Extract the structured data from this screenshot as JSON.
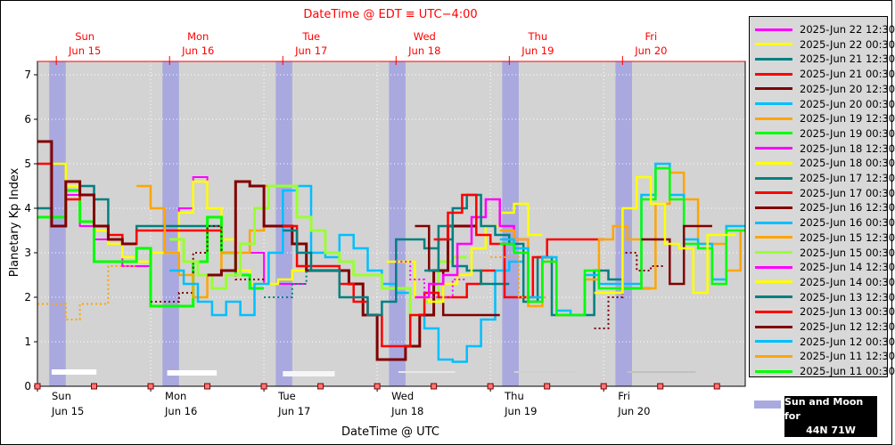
{
  "chart_data": {
    "type": "line",
    "title": "DateTime @ EDT ≡ UTC−4:00",
    "xlabel": "DateTime @ UTC",
    "ylabel": "Planetary Kp Index",
    "ylim": [
      0,
      7.3
    ],
    "yticks": [
      "0",
      "1",
      "2",
      "3",
      "4",
      "5",
      "6",
      "7"
    ],
    "x_range_hours": [
      0,
      150
    ],
    "top_axis_ticks": [
      {
        "day": "Sun",
        "date": "Jun 15",
        "hour": 4
      },
      {
        "day": "Mon",
        "date": "Jun 16",
        "hour": 28
      },
      {
        "day": "Tue",
        "date": "Jun 17",
        "hour": 52
      },
      {
        "day": "Wed",
        "date": "Jun 18",
        "hour": 76
      },
      {
        "day": "Thu",
        "date": "Jun 19",
        "hour": 100
      },
      {
        "day": "Fri",
        "date": "Jun 20",
        "hour": 124
      }
    ],
    "bottom_axis_ticks": [
      {
        "day": "Sun",
        "date": "Jun 15",
        "hour": 0
      },
      {
        "day": "Mon",
        "date": "Jun 16",
        "hour": 24
      },
      {
        "day": "Tue",
        "date": "Jun 17",
        "hour": 48
      },
      {
        "day": "Wed",
        "date": "Jun 18",
        "hour": 72
      },
      {
        "day": "Thu",
        "date": "Jun 19",
        "hour": 96
      },
      {
        "day": "Fri",
        "date": "Jun 20",
        "hour": 120
      }
    ],
    "night_bands_hours": [
      [
        2.5,
        6
      ],
      [
        26.5,
        30
      ],
      [
        50.5,
        54
      ],
      [
        74.5,
        78
      ],
      [
        98.5,
        102
      ],
      [
        122.5,
        126
      ]
    ],
    "moon_bars": [
      {
        "x0": 3,
        "x1": 12.5,
        "y": 0.32,
        "brightness": 1.0
      },
      {
        "x0": 27.5,
        "x1": 38,
        "y": 0.3,
        "brightness": 1.0
      },
      {
        "x0": 52,
        "x1": 63,
        "y": 0.28,
        "brightness": 0.9
      },
      {
        "x0": 76.5,
        "x1": 88.5,
        "y": 0.28,
        "brightness": 0.75
      },
      {
        "x0": 101,
        "x1": 114,
        "y": 0.28,
        "brightness": 0.5
      },
      {
        "x0": 125,
        "x1": 139.5,
        "y": 0.28,
        "brightness": 0.35
      }
    ],
    "series": [
      {
        "name": "2025-Jun 22 12:30",
        "color": "#ff00ff"
      },
      {
        "name": "2025-Jun 22 00:30",
        "color": "#ffff00"
      },
      {
        "name": "2025-Jun 21 12:30",
        "color": "#008080"
      },
      {
        "name": "2025-Jun 21 00:30",
        "color": "#ff0000"
      },
      {
        "name": "2025-Jun 20 12:30",
        "color": "#800000"
      },
      {
        "name": "2025-Jun 20 00:30",
        "color": "#00bfff"
      },
      {
        "name": "2025-Jun 19 12:30",
        "color": "#ffa500"
      },
      {
        "name": "2025-Jun 19 00:30",
        "color": "#00ff00"
      },
      {
        "name": "2025-Jun 18 12:30",
        "color": "#ff00ff"
      },
      {
        "name": "2025-Jun 18 00:30",
        "color": "#ffff00"
      },
      {
        "name": "2025-Jun 17 12:30",
        "color": "#008080"
      },
      {
        "name": "2025-Jun 17 00:30",
        "color": "#ff0000"
      },
      {
        "name": "2025-Jun 16 12:30",
        "color": "#800000"
      },
      {
        "name": "2025-Jun 16 00:30",
        "color": "#00bfff"
      },
      {
        "name": "2025-Jun 15 12:30",
        "color": "#ffa500"
      },
      {
        "name": "2025-Jun 15 00:30",
        "color": "#99ff33"
      },
      {
        "name": "2025-Jun 14 12:30",
        "color": "#ff00ff"
      },
      {
        "name": "2025-Jun 14 00:30",
        "color": "#ffff00"
      },
      {
        "name": "2025-Jun 13 12:30",
        "color": "#008080"
      },
      {
        "name": "2025-Jun 13 00:30",
        "color": "#ff0000"
      },
      {
        "name": "2025-Jun 12 12:30",
        "color": "#800000"
      },
      {
        "name": "2025-Jun 12 00:30",
        "color": "#00bfff"
      },
      {
        "name": "2025-Jun 11 12:30",
        "color": "#ffa500"
      },
      {
        "name": "2025-Jun 11 00:30",
        "color": "#00ff00"
      }
    ],
    "traces": [
      {
        "color": "#ff00ff",
        "width": 2,
        "dash": false,
        "x0": 0,
        "v": [
          5.5,
          5.0,
          4.3,
          3.6,
          3.3,
          3.3,
          2.7,
          2.7,
          3.0,
          3.0,
          4.0,
          4.7,
          4.0,
          3.0,
          3.0,
          3.0,
          2.3,
          2.3,
          2.3
        ]
      },
      {
        "color": "#ffff00",
        "width": 2.5,
        "dash": false,
        "x0": 0,
        "v": [
          3.8,
          5.0,
          4.5,
          3.7,
          3.5,
          3.2,
          2.9,
          2.8,
          3.0,
          3.0,
          3.9,
          4.6,
          4.0,
          3.3,
          2.6,
          2.3,
          2.3,
          2.4,
          2.6
        ]
      },
      {
        "color": "#008080",
        "width": 2.5,
        "dash": false,
        "x0": 0,
        "v": [
          4.0,
          3.6,
          4.6,
          4.5,
          4.2,
          3.3,
          3.2,
          3.6,
          3.6,
          3.6,
          3.6,
          3.6,
          3.6
        ]
      },
      {
        "color": "#00ff00",
        "width": 3,
        "dash": false,
        "x0": 0,
        "v": [
          3.8,
          3.8,
          4.4,
          3.7,
          2.8,
          2.8,
          2.8,
          3.1,
          1.8,
          1.8,
          1.8,
          2.8,
          3.8,
          3.0,
          2.5,
          2.2
        ]
      },
      {
        "color": "#ffa500",
        "width": 2,
        "dash": true,
        "x0": 0,
        "v": [
          1.85,
          1.85,
          1.5,
          1.85,
          1.85,
          2.7,
          2.7
        ]
      },
      {
        "color": "#ff0000",
        "width": 2.5,
        "dash": false,
        "x0": 0,
        "v": [
          5.0,
          3.6,
          4.2,
          4.3,
          3.6,
          3.4,
          3.2,
          3.5,
          3.5,
          3.5,
          3.5,
          3.5,
          3.5
        ]
      },
      {
        "color": "#800000",
        "width": 3,
        "dash": false,
        "x0": 0,
        "v": [
          5.5,
          3.6,
          4.6,
          4.3,
          3.6,
          3.3,
          3.2
        ]
      },
      {
        "color": "#800000",
        "width": 2,
        "dash": true,
        "x0": 24,
        "v": [
          1.9,
          1.9,
          2.1,
          3.0,
          3.6,
          3.0,
          2.4,
          2.4
        ]
      },
      {
        "color": "#ffa500",
        "width": 2.5,
        "dash": false,
        "x0": 21,
        "v": [
          4.5,
          4.0,
          3.0,
          2.5,
          2.0,
          2.5,
          3.0,
          3.0,
          3.5,
          4.5,
          4.5
        ]
      },
      {
        "color": "#00bfff",
        "width": 2.5,
        "dash": false,
        "x0": 28,
        "v": [
          2.6,
          2.3,
          1.9,
          1.6,
          1.9,
          1.6,
          2.3,
          3.0,
          4.4,
          4.5,
          3.0,
          2.9,
          3.4,
          3.1,
          2.6,
          2.3,
          2.1,
          1.6,
          1.3,
          0.6,
          0.55,
          0.9,
          1.5,
          2.6,
          2.8
        ]
      },
      {
        "color": "#99ff33",
        "width": 3,
        "dash": false,
        "x0": 28,
        "v": [
          3.3,
          2.8,
          2.5,
          2.2,
          2.5,
          3.2,
          4.0,
          4.5,
          4.5,
          3.8,
          3.5,
          3.0,
          2.8,
          2.5,
          2.5,
          2.2,
          2.2,
          1.6,
          1.9,
          2.8,
          2.9
        ]
      },
      {
        "color": "#800000",
        "width": 3,
        "dash": false,
        "x0": 36,
        "v": [
          2.5,
          2.6,
          4.6,
          4.5,
          3.6,
          3.6,
          3.2,
          2.6,
          2.6,
          2.6,
          2.3,
          1.6,
          0.6,
          0.6,
          0.9,
          1.6,
          2.6,
          3.6,
          3.6
        ]
      },
      {
        "color": "#008080",
        "width": 2,
        "dash": true,
        "x0": 48,
        "v": [
          2.0,
          2.0,
          2.3,
          2.6,
          2.6
        ]
      },
      {
        "color": "#ff0000",
        "width": 2.5,
        "dash": false,
        "x0": 52,
        "v": [
          3.6,
          2.7,
          2.7,
          2.7,
          2.3,
          1.9,
          1.6,
          0.9,
          0.9,
          1.6,
          2.1,
          2.0,
          2.0,
          2.3,
          2.6
        ]
      },
      {
        "color": "#008080",
        "width": 2.5,
        "dash": false,
        "x0": 52,
        "v": [
          3.5,
          3.0,
          2.6,
          2.6,
          2.0,
          2.0,
          1.6,
          1.9,
          3.3,
          3.3,
          3.1,
          3.6,
          2.7,
          2.6,
          2.3,
          2.3
        ]
      },
      {
        "color": "#800000",
        "width": 2.5,
        "dash": false,
        "x0": 80,
        "v": [
          3.6,
          2.6,
          1.6,
          1.6,
          1.6,
          1.6
        ]
      },
      {
        "color": "#ffff00",
        "width": 2.5,
        "dash": false,
        "x0": 74,
        "v": [
          2.8,
          2.8,
          2.0,
          1.9,
          2.3,
          2.5,
          3.1,
          3.6,
          3.9,
          4.1,
          3.4
        ]
      },
      {
        "color": "#ff00ff",
        "width": 2,
        "dash": true,
        "x0": 76,
        "v": [
          2.8,
          2.4,
          2.0,
          2.0,
          2.4
        ]
      },
      {
        "color": "#ff00ff",
        "width": 2.5,
        "dash": false,
        "x0": 80,
        "v": [
          2.0,
          2.3,
          2.5,
          3.2,
          3.8,
          4.2,
          3.6,
          3.3
        ]
      },
      {
        "color": "#008080",
        "width": 2.5,
        "dash": false,
        "x0": 82,
        "v": [
          2.6,
          3.3,
          4.0,
          4.3,
          3.6,
          3.4,
          3.2,
          1.9,
          2.9,
          1.6,
          1.6,
          1.6,
          2.6,
          2.4,
          2.2,
          2.2
        ]
      },
      {
        "color": "#ff0000",
        "width": 2.5,
        "dash": false,
        "x0": 84,
        "v": [
          3.3,
          3.9,
          4.3,
          3.4,
          3.2,
          2.0,
          2.0,
          2.9,
          3.3,
          3.3,
          3.3,
          3.3
        ]
      },
      {
        "color": "#ffa500",
        "width": 2,
        "dash": true,
        "x0": 96,
        "v": [
          2.9,
          2.9,
          2.0,
          2.0
        ]
      },
      {
        "color": "#ffa500",
        "width": 2.5,
        "dash": false,
        "x0": 98,
        "v": [
          3.5,
          3.3,
          1.8,
          2.8,
          1.6,
          1.6,
          2.4,
          3.3,
          3.6,
          3.3,
          2.2,
          4.1,
          4.8,
          4.2,
          3.2,
          3.2,
          2.6,
          3.5
        ]
      },
      {
        "color": "#00bfff",
        "width": 2.5,
        "dash": false,
        "x0": 98,
        "v": [
          3.3,
          3.1,
          2.0,
          2.9,
          1.7,
          1.6,
          2.5,
          2.3,
          2.3,
          2.3,
          4.3,
          5.0,
          4.3,
          3.3,
          3.2,
          2.4,
          3.6,
          3.6
        ]
      },
      {
        "color": "#00ff00",
        "width": 2.5,
        "dash": false,
        "x0": 98,
        "v": [
          3.2,
          3.0,
          1.9,
          2.8,
          1.6,
          1.6,
          2.6,
          2.2,
          2.2,
          2.2,
          4.2,
          4.9,
          4.2,
          3.2,
          3.1,
          2.3,
          3.5,
          3.5
        ]
      },
      {
        "color": "#800000",
        "width": 2,
        "dash": true,
        "x0": 118,
        "v": [
          1.3,
          2.0,
          3.0,
          2.6,
          2.7
        ]
      },
      {
        "color": "#800000",
        "width": 2.5,
        "dash": false,
        "x0": 128,
        "v": [
          3.3,
          3.3,
          2.3,
          3.6,
          3.6
        ]
      },
      {
        "color": "#ffff00",
        "width": 2.5,
        "dash": false,
        "x0": 118,
        "v": [
          2.1,
          2.1,
          4.0,
          4.7,
          4.1,
          3.2,
          3.1,
          2.1,
          3.4,
          3.4
        ]
      }
    ]
  },
  "legend": {
    "sun_moon_text_1": "Sun and Moon for",
    "sun_moon_text_2": "44N 71W"
  }
}
